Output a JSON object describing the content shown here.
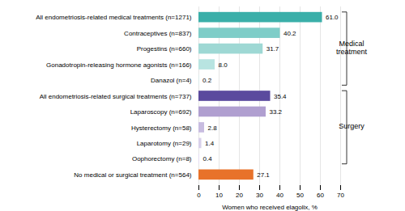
{
  "chart_data": {
    "type": "bar",
    "orientation": "horizontal",
    "xlabel": "Women who received elagolix, %",
    "categories": [
      "All endometriosis-related medical treatments (n=1271)",
      "Contraceptives (n=837)",
      "Progestins (n=660)",
      "Gonadotropin-releasing hormone agonists (n=166)",
      "Danazol (n=4)",
      "All endometriosis-related surgical treatments (n=737)",
      "Laparoscopy (n=692)",
      "Hysterectomy (n=58)",
      "Laparotomy (n=29)",
      "Oophorectomy (n=8)",
      "No medical or surgical treatment (n=564)"
    ],
    "values": [
      61.0,
      40.2,
      31.7,
      8.0,
      0.2,
      35.4,
      33.2,
      2.8,
      1.4,
      0.4,
      27.1
    ],
    "value_labels": [
      "61.0",
      "40.2",
      "31.7",
      "8.0",
      "0.2",
      "35.4",
      "33.2",
      "2.8",
      "1.4",
      "0.4",
      "27.1"
    ],
    "data_labels": true,
    "colors": [
      "#3aafa9",
      "#7ecdc8",
      "#9ed8d4",
      "#b8e4e1",
      "#d0eeec",
      "#5b4a9e",
      "#b09fd0",
      "#c8bce0",
      "#d8d0ea",
      "#e4dcf2",
      "#e8722a"
    ],
    "xlim": [
      0,
      70
    ],
    "xticks": [
      0,
      10,
      20,
      30,
      40,
      50,
      60,
      70
    ],
    "grid": true,
    "annotations": [
      {
        "text": "Medical\ntreatment",
        "from": "All endometriosis-related medical treatments (n=1271)",
        "to": "Danazol (n=4)"
      },
      {
        "text": "Surgery",
        "from": "All endometriosis-related surgical treatments (n=737)",
        "to": "Oophorectomy (n=8)"
      }
    ]
  }
}
